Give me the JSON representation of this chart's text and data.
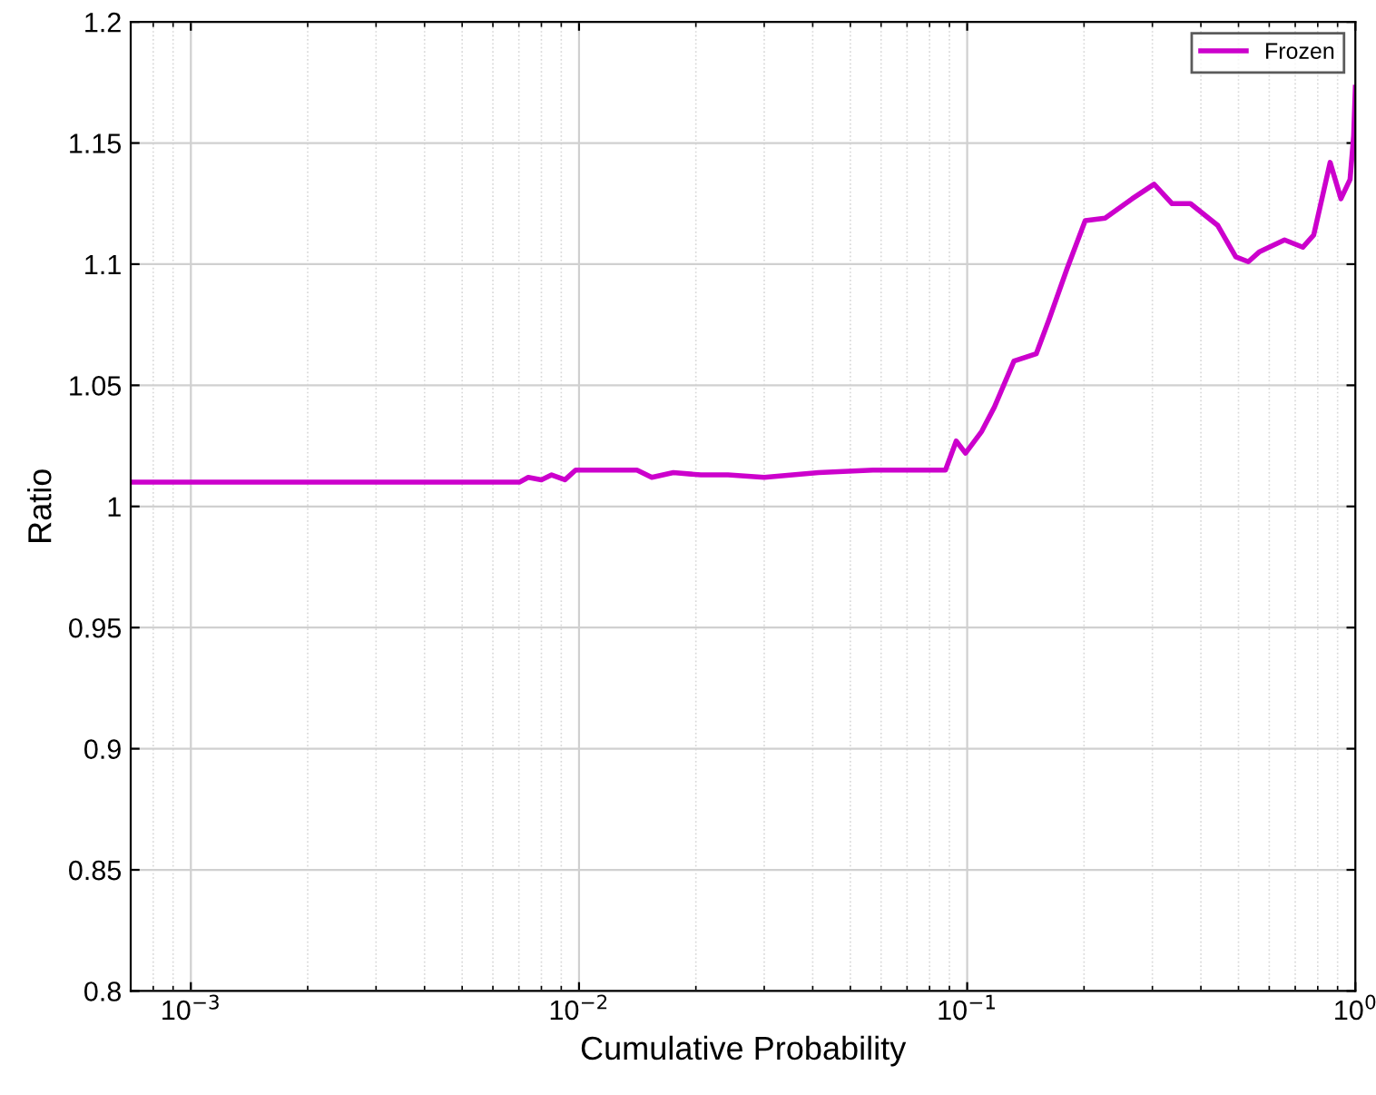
{
  "chart_data": {
    "type": "line",
    "xlabel": "Cumulative Probability",
    "ylabel": "Ratio",
    "log": "x",
    "grid": true,
    "legend": "top right",
    "line_style": "solid",
    "marker": "none",
    "xlim": [
      0.0007,
      1
    ],
    "ylim": [
      0.8,
      1.2
    ],
    "xticks": [
      {
        "value": 0.001,
        "label": "10$^{−3}$"
      },
      {
        "value": 0.01,
        "label": "10$^{−2}$"
      },
      {
        "value": 0.1,
        "label": "10$^{−1}$"
      },
      {
        "value": 1,
        "label": "10$^{0}$"
      }
    ],
    "yticks": [
      0.8,
      0.85,
      0.9,
      0.95,
      1,
      1.05,
      1.1,
      1.15,
      1.2
    ],
    "series": [
      {
        "name": "Frozen",
        "color": "#cc00cc",
        "x": [
          0.0007,
          0.00702,
          0.0074,
          0.008,
          0.0085,
          0.0092,
          0.0098,
          0.0141,
          0.0154,
          0.0175,
          0.0206,
          0.0242,
          0.03,
          0.0414,
          0.0572,
          0.0879,
          0.0937,
          0.099,
          0.109,
          0.1175,
          0.132,
          0.1506,
          0.1624,
          0.1807,
          0.2014,
          0.2266,
          0.266,
          0.303,
          0.337,
          0.376,
          0.442,
          0.492,
          0.53,
          0.565,
          0.657,
          0.732,
          0.781,
          0.861,
          0.918,
          0.969,
          0.99,
          1.0
        ],
        "values": [
          1.01,
          1.01,
          1.012,
          1.011,
          1.013,
          1.011,
          1.015,
          1.015,
          1.012,
          1.014,
          1.013,
          1.013,
          1.012,
          1.014,
          1.015,
          1.015,
          1.027,
          1.022,
          1.031,
          1.041,
          1.06,
          1.063,
          1.077,
          1.098,
          1.118,
          1.119,
          1.127,
          1.133,
          1.125,
          1.125,
          1.116,
          1.103,
          1.101,
          1.105,
          1.11,
          1.107,
          1.112,
          1.142,
          1.127,
          1.135,
          1.153,
          1.173
        ]
      }
    ]
  }
}
